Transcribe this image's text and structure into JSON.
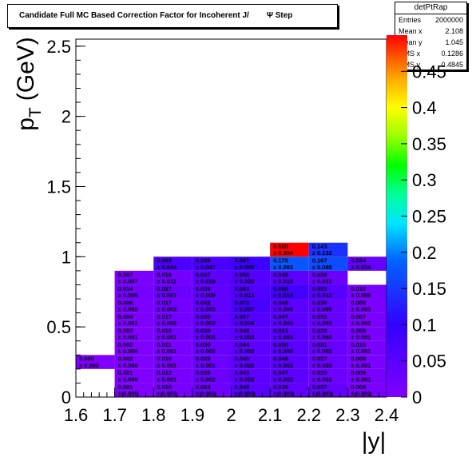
{
  "title": {
    "text": "Candidate Full MC Based Correction Factor for Incoherent J/",
    "psi": "Ψ",
    "suffix": "Step"
  },
  "stats": {
    "name": "detPtRap",
    "rows": [
      {
        "label": "Entries",
        "value": "2000000"
      },
      {
        "label": "Mean x",
        "value": "2.108"
      },
      {
        "label": "Mean y",
        "value": "1.045"
      },
      {
        "label": "RMS x",
        "value": "0.1286"
      },
      {
        "label": "RMS y",
        "value": "0.4845"
      }
    ]
  },
  "chart_data": {
    "type": "heatmap",
    "xlabel": "|y|",
    "ylabel_main": "p",
    "ylabel_sub": "T",
    "ylabel_unit": "(GeV)",
    "xlim": [
      1.6,
      2.4
    ],
    "ylim": [
      0,
      2.55
    ],
    "zlim": [
      0,
      0.5
    ],
    "x_ticks": [
      1.6,
      1.7,
      1.8,
      1.9,
      2.0,
      2.1,
      2.2,
      2.3,
      2.4
    ],
    "x_tick_labels": [
      "1.6",
      "1.7",
      "1.8",
      "1.9",
      "2",
      "2.1",
      "2.2",
      "2.3",
      "2.4"
    ],
    "y_ticks": [
      0,
      0.5,
      1.0,
      1.5,
      2.0,
      2.5
    ],
    "y_tick_labels": [
      "0",
      "0.5",
      "1",
      "1.5",
      "2",
      "2.5"
    ],
    "z_ticks": [
      0,
      0.05,
      0.1,
      0.15,
      0.2,
      0.25,
      0.3,
      0.35,
      0.4,
      0.45
    ],
    "z_tick_labels": [
      "0",
      "0.05",
      "0.1",
      "0.15",
      "0.2",
      "0.25",
      "0.3",
      "0.35",
      "0.4",
      "0.45"
    ],
    "x_edges": [
      1.6,
      1.7,
      1.8,
      1.9,
      2.0,
      2.1,
      2.2,
      2.3,
      2.4
    ],
    "y_edges": [
      0,
      0.1,
      0.2,
      0.3,
      0.4,
      0.5,
      0.6,
      0.7,
      0.8,
      0.9,
      1.0,
      1.1,
      1.2,
      1.35,
      1.5,
      1.65
    ],
    "cells": [
      {
        "ix": 1,
        "iy": 0,
        "value": 0.001,
        "label": "0.001",
        "error": "± 0.000"
      },
      {
        "ix": 2,
        "iy": 0,
        "value": 0.01,
        "label": "0.010",
        "error": "± 0.001"
      },
      {
        "ix": 3,
        "iy": 0,
        "value": 0.024,
        "label": "0.024",
        "error": "± 0.002"
      },
      {
        "ix": 4,
        "iy": 0,
        "value": 0.049,
        "label": "0.049",
        "error": "± 0.003"
      },
      {
        "ix": 5,
        "iy": 0,
        "value": 0.039,
        "label": "0.039",
        "error": "± 0.003"
      },
      {
        "ix": 6,
        "iy": 0,
        "value": 0.037,
        "label": "0.037",
        "error": "± 0.003"
      },
      {
        "ix": 7,
        "iy": 0,
        "value": 0.008,
        "label": "0.008",
        "error": "± 0.002"
      },
      {
        "ix": 1,
        "iy": 1,
        "value": 0.001,
        "label": "0.001",
        "error": "± 0.000"
      },
      {
        "ix": 2,
        "iy": 1,
        "value": 0.012,
        "label": "0.012",
        "error": "± 0.001"
      },
      {
        "ix": 3,
        "iy": 1,
        "value": 0.026,
        "label": "0.026",
        "error": "± 0.002"
      },
      {
        "ix": 4,
        "iy": 1,
        "value": 0.043,
        "label": "0.043",
        "error": "± 0.002"
      },
      {
        "ix": 5,
        "iy": 1,
        "value": 0.047,
        "label": "0.047",
        "error": "± 0.002"
      },
      {
        "ix": 6,
        "iy": 1,
        "value": 0.025,
        "label": "0.025",
        "error": "± 0.002"
      },
      {
        "ix": 7,
        "iy": 1,
        "value": 0.009,
        "label": "0.009",
        "error": "± 0.001"
      },
      {
        "ix": 0,
        "iy": 2,
        "value": 0.0,
        "label": "0.000",
        "error": "± 0.000"
      },
      {
        "ix": 1,
        "iy": 2,
        "value": 0.002,
        "label": "0.002",
        "error": "± 0.000"
      },
      {
        "ix": 2,
        "iy": 2,
        "value": 0.01,
        "label": "0.010",
        "error": "± 0.001"
      },
      {
        "ix": 3,
        "iy": 2,
        "value": 0.028,
        "label": "0.028",
        "error": "± 0.001"
      },
      {
        "ix": 4,
        "iy": 2,
        "value": 0.045,
        "label": "0.045",
        "error": "± 0.002"
      },
      {
        "ix": 5,
        "iy": 2,
        "value": 0.048,
        "label": "0.048",
        "error": "± 0.002"
      },
      {
        "ix": 6,
        "iy": 2,
        "value": 0.027,
        "label": "0.027",
        "error": "± 0.002"
      },
      {
        "ix": 7,
        "iy": 2,
        "value": 0.008,
        "label": "0.008",
        "error": "± 0.001"
      },
      {
        "ix": 1,
        "iy": 3,
        "value": 0.002,
        "label": "0.002",
        "error": "± 0.000"
      },
      {
        "ix": 2,
        "iy": 3,
        "value": 0.011,
        "label": "0.011",
        "error": "± 0.001"
      },
      {
        "ix": 3,
        "iy": 3,
        "value": 0.03,
        "label": "0.030",
        "error": "± 0.002"
      },
      {
        "ix": 4,
        "iy": 3,
        "value": 0.044,
        "label": "0.044",
        "error": "± 0.002"
      },
      {
        "ix": 5,
        "iy": 3,
        "value": 0.05,
        "label": "0.050",
        "error": "± 0.002"
      },
      {
        "ix": 6,
        "iy": 3,
        "value": 0.031,
        "label": "0.031",
        "error": "± 0.002"
      },
      {
        "ix": 7,
        "iy": 3,
        "value": 0.01,
        "label": "0.010",
        "error": "± 0.001"
      },
      {
        "ix": 1,
        "iy": 4,
        "value": 0.003,
        "label": "0.003",
        "error": "± 0.001"
      },
      {
        "ix": 2,
        "iy": 4,
        "value": 0.015,
        "label": "0.015",
        "error": "± 0.001"
      },
      {
        "ix": 3,
        "iy": 4,
        "value": 0.039,
        "label": "0.039",
        "error": "± 0.002"
      },
      {
        "ix": 4,
        "iy": 4,
        "value": 0.048,
        "label": "0.048",
        "error": "± 0.003"
      },
      {
        "ix": 5,
        "iy": 4,
        "value": 0.051,
        "label": "0.051",
        "error": "± 0.003"
      },
      {
        "ix": 6,
        "iy": 4,
        "value": 0.028,
        "label": "0.028",
        "error": "± 0.002"
      },
      {
        "ix": 7,
        "iy": 4,
        "value": 0.009,
        "label": "0.009",
        "error": "± 0.001"
      },
      {
        "ix": 1,
        "iy": 5,
        "value": 0.004,
        "label": "0.004",
        "error": "± 0.001"
      },
      {
        "ix": 2,
        "iy": 5,
        "value": 0.017,
        "label": "0.017",
        "error": "± 0.002"
      },
      {
        "ix": 3,
        "iy": 5,
        "value": 0.035,
        "label": "0.035",
        "error": "± 0.003"
      },
      {
        "ix": 4,
        "iy": 5,
        "value": 0.057,
        "label": "0.057",
        "error": "± 0.004"
      },
      {
        "ix": 5,
        "iy": 5,
        "value": 0.047,
        "label": "0.047",
        "error": "± 0.004"
      },
      {
        "ix": 6,
        "iy": 5,
        "value": 0.033,
        "label": "0.033",
        "error": "± 0.003"
      },
      {
        "ix": 7,
        "iy": 5,
        "value": 0.007,
        "label": "0.007",
        "error": "± 0.002"
      },
      {
        "ix": 1,
        "iy": 6,
        "value": 0.006,
        "label": "0.006",
        "error": "± 0.002"
      },
      {
        "ix": 2,
        "iy": 6,
        "value": 0.017,
        "label": "0.017",
        "error": "± 0.003"
      },
      {
        "ix": 3,
        "iy": 6,
        "value": 0.042,
        "label": "0.042",
        "error": "± 0.005"
      },
      {
        "ix": 4,
        "iy": 6,
        "value": 0.073,
        "label": "0.073",
        "error": "± 0.007"
      },
      {
        "ix": 5,
        "iy": 6,
        "value": 0.048,
        "label": "0.048",
        "error": "± 0.006"
      },
      {
        "ix": 6,
        "iy": 6,
        "value": 0.036,
        "label": "0.036",
        "error": "± 0.006"
      },
      {
        "ix": 7,
        "iy": 6,
        "value": 0.008,
        "label": "0.008",
        "error": "± 0.003"
      },
      {
        "ix": 1,
        "iy": 7,
        "value": 0.014,
        "label": "0.014",
        "error": "± 0.005"
      },
      {
        "ix": 2,
        "iy": 7,
        "value": 0.027,
        "label": "0.027",
        "error": "± 0.007"
      },
      {
        "ix": 3,
        "iy": 7,
        "value": 0.039,
        "label": "0.039",
        "error": "± 0.009"
      },
      {
        "ix": 4,
        "iy": 7,
        "value": 0.063,
        "label": "0.063",
        "error": "± 0.012"
      },
      {
        "ix": 5,
        "iy": 7,
        "value": 0.08,
        "label": "0.080",
        "error": "± 0.014"
      },
      {
        "ix": 6,
        "iy": 7,
        "value": 0.053,
        "label": "0.053",
        "error": "± 0.012"
      },
      {
        "ix": 7,
        "iy": 7,
        "value": 0.01,
        "label": "0.010",
        "error": "± 0.006"
      },
      {
        "ix": 1,
        "iy": 8,
        "value": 0.007,
        "label": "0.007",
        "error": "± 0.007"
      },
      {
        "ix": 2,
        "iy": 8,
        "value": 0.016,
        "label": "0.016",
        "error": "± 0.011"
      },
      {
        "ix": 3,
        "iy": 8,
        "value": 0.047,
        "label": "0.047",
        "error": "± 0.019"
      },
      {
        "ix": 4,
        "iy": 8,
        "value": 0.056,
        "label": "0.056",
        "error": "± 0.020"
      },
      {
        "ix": 5,
        "iy": 8,
        "value": 0.048,
        "label": "0.048",
        "error": "± 0.019"
      },
      {
        "ix": 6,
        "iy": 8,
        "value": 0.028,
        "label": "0.028",
        "error": "± 0.015"
      },
      {
        "ix": 2,
        "iy": 9,
        "value": 0.065,
        "label": "0.065",
        "error": "± 0.044"
      },
      {
        "ix": 3,
        "iy": 9,
        "value": 0.069,
        "label": "0.069",
        "error": "± 0.047"
      },
      {
        "ix": 4,
        "iy": 9,
        "value": 0.087,
        "label": "0.087",
        "error": "± 0.059"
      },
      {
        "ix": 5,
        "iy": 9,
        "value": 0.176,
        "label": "0.176",
        "error": "± 0.092"
      },
      {
        "ix": 6,
        "iy": 9,
        "value": 0.167,
        "label": "0.167",
        "error": "± 0.088"
      },
      {
        "ix": 7,
        "iy": 9,
        "value": 0.034,
        "label": "0.034",
        "error": "± 0.034"
      },
      {
        "ix": 5,
        "iy": 10,
        "value": 0.5,
        "label": "0.500",
        "error": "± 0.354"
      },
      {
        "ix": 6,
        "iy": 10,
        "value": 0.143,
        "label": "0.143",
        "error": "± 0.132"
      }
    ]
  }
}
